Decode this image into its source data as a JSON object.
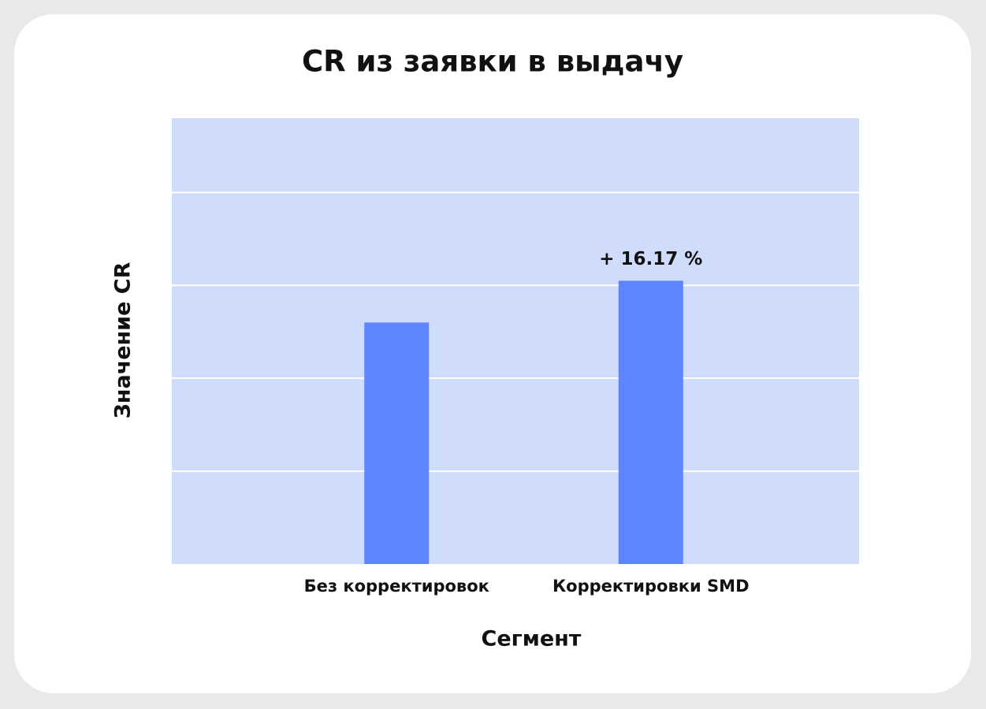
{
  "chart_data": {
    "type": "bar",
    "title": "CR из заявки в выдачу",
    "x_label": "Сегмент",
    "y_label": "Значение CR",
    "categories": [
      "Без корректировок",
      "Корректировки SMD"
    ],
    "values": [
      2.6,
      3.05
    ],
    "color": "#5c85ff",
    "annotation": "+ 16.17 %",
    "ylim": [
      0,
      4.8
    ],
    "yticks": [
      1,
      2,
      3,
      4
    ],
    "grid": true
  }
}
